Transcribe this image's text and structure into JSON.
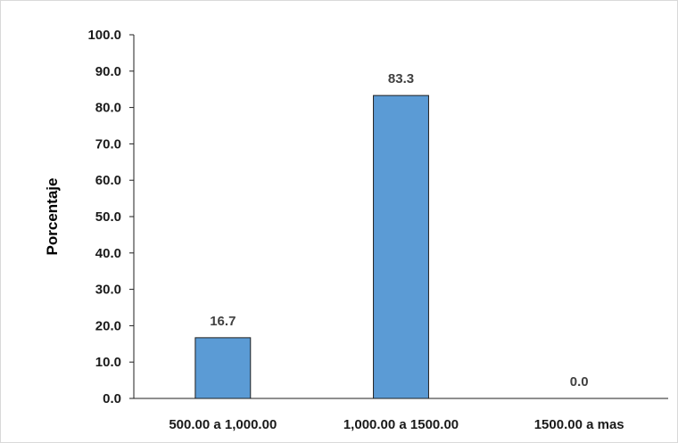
{
  "chart_data": {
    "type": "bar",
    "categories": [
      "500.00 a 1,000.00",
      "1,000.00 a 1500.00",
      "1500.00 a mas"
    ],
    "values": [
      16.7,
      83.3,
      0.0
    ],
    "value_labels": [
      "16.7",
      "83.3",
      "0.0"
    ],
    "title": "",
    "xlabel": "",
    "ylabel": "Porcentaje",
    "ylim": [
      0,
      100
    ],
    "y_ticks": [
      "0.0",
      "10.0",
      "20.0",
      "30.0",
      "40.0",
      "50.0",
      "60.0",
      "70.0",
      "80.0",
      "90.0",
      "100.0"
    ],
    "grid": false,
    "legend": "none",
    "bar_color": "#5b9bd5",
    "bar_edge_color": "#1f1f1f"
  }
}
